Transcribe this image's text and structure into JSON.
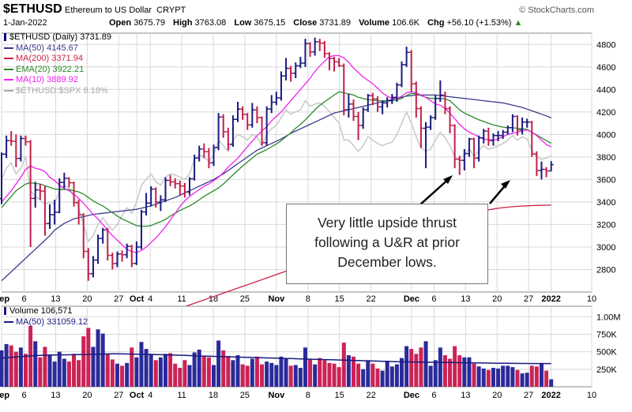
{
  "header": {
    "symbol": "$ETHUSD",
    "name": "Ethereum to US Dollar",
    "exchange": "CRYPT",
    "date": "1-Jan-2022",
    "watermark": "© StockCharts.com",
    "open_label": "Open",
    "open": "3675.79",
    "high_label": "High",
    "high": "3763.08",
    "low_label": "Low",
    "low": "3675.15",
    "close_label": "Close",
    "close": "3731.89",
    "volume_label": "Volume",
    "volume": "106.6K",
    "chg_label": "Chg",
    "chg": "+56.10 (+1.53%)",
    "chg_arrow": "▲"
  },
  "legend": [
    {
      "text": "$ETHUSD (Daily) 3731.89",
      "color": "#000080",
      "marker": "bar"
    },
    {
      "text": "MA(50) 4145.67",
      "color": "#3a3a8c",
      "marker": "line"
    },
    {
      "text": "MA(200) 3371.94",
      "color": "#cc2244",
      "marker": "line"
    },
    {
      "text": "EMA(20) 3922.21",
      "color": "#2a8a2a",
      "marker": "line"
    },
    {
      "text": "MA(10) 3889.92",
      "color": "#ee22ee",
      "marker": "line"
    },
    {
      "text": "$ETHUSD:$SPX 8.18%",
      "color": "#aaaaaa",
      "marker": "line"
    }
  ],
  "volume_legend": [
    {
      "text": "Volume 106,571",
      "color": "#1a1a80",
      "marker": "bar"
    },
    {
      "text": "MA(50) 331059.12",
      "color": "#1a1a80",
      "marker": "line"
    }
  ],
  "annotation": {
    "lines": [
      "Very little upside thrust",
      "following a U&R at prior",
      "December lows."
    ]
  },
  "colors": {
    "up": "#1a1a80",
    "down": "#c0204a",
    "grid": "#d8d8d8",
    "ma50": "#3a3a8c",
    "ma200": "#cc2244",
    "ema20": "#2a8a2a",
    "ma10": "#ee22ee",
    "ratio": "#c8c8c8",
    "vol_up": "#2a2a9a",
    "vol_down": "#cc2255"
  },
  "chart_data": {
    "type": "ohlc",
    "title": "$ETHUSD Ethereum to US Dollar CRYPT",
    "start_date": "2021-09-01",
    "end_date": "2022-01-01",
    "price_ylim": [
      2600,
      4900
    ],
    "price_ticks": [
      2800,
      3000,
      3200,
      3400,
      3600,
      3800,
      4000,
      4200,
      4400,
      4600,
      4800
    ],
    "volume_ylim": [
      0,
      1150000
    ],
    "volume_tick_labels": [
      "250K",
      "500K",
      "750K",
      "1.00M"
    ],
    "volume_ticks": [
      250000,
      500000,
      750000,
      1000000
    ],
    "x_tick_labels": [
      {
        "date": "2021-09-01",
        "label": "Sep",
        "bold": true
      },
      {
        "date": "2021-09-06",
        "label": "6"
      },
      {
        "date": "2021-09-13",
        "label": "13"
      },
      {
        "date": "2021-09-20",
        "label": "20"
      },
      {
        "date": "2021-09-27",
        "label": "27"
      },
      {
        "date": "2021-10-01",
        "label": "Oct",
        "bold": true
      },
      {
        "date": "2021-10-04",
        "label": "4"
      },
      {
        "date": "2021-10-11",
        "label": "11"
      },
      {
        "date": "2021-10-18",
        "label": "18"
      },
      {
        "date": "2021-10-25",
        "label": "25"
      },
      {
        "date": "2021-11-01",
        "label": "Nov",
        "bold": true
      },
      {
        "date": "2021-11-08",
        "label": "8"
      },
      {
        "date": "2021-11-15",
        "label": "15"
      },
      {
        "date": "2021-11-22",
        "label": "22"
      },
      {
        "date": "2021-12-01",
        "label": "Dec",
        "bold": true
      },
      {
        "date": "2021-12-06",
        "label": "6"
      },
      {
        "date": "2021-12-13",
        "label": "13"
      },
      {
        "date": "2021-12-20",
        "label": "20"
      },
      {
        "date": "2021-12-27",
        "label": "27"
      },
      {
        "date": "2022-01-01",
        "label": "2022",
        "bold": true
      },
      {
        "date": "2022-01-10",
        "label": "10"
      }
    ],
    "close": [
      3825,
      3945,
      3940,
      3787,
      3964,
      3935,
      3432,
      3507,
      3497,
      3209,
      3287,
      3309,
      3574,
      3611,
      3571,
      3395,
      3286,
      2961,
      2763,
      2884,
      3076,
      3152,
      2926,
      2853,
      2938,
      2931,
      3006,
      2854,
      3000,
      3312,
      3390,
      3515,
      3399,
      3419,
      3592,
      3579,
      3563,
      3542,
      3489,
      3606,
      3790,
      3870,
      3847,
      3748,
      3884,
      4155,
      4024,
      3913,
      4134,
      4225,
      4178,
      4085,
      4218,
      4150,
      3927,
      4226,
      4286,
      4325,
      4520,
      4587,
      4544,
      4610,
      4634,
      4807,
      4734,
      4823,
      4812,
      4718,
      4675,
      4645,
      4610,
      4220,
      4270,
      4160,
      4080,
      4220,
      4345,
      4315,
      4245,
      4280,
      4300,
      4330,
      4440,
      4620,
      4730,
      4450,
      4230,
      4055,
      4065,
      4150,
      4320,
      4350,
      4230,
      4080,
      3780,
      3770,
      3830,
      3960,
      3790,
      3970,
      4030,
      3945,
      3990,
      3990,
      4020,
      4060,
      4160,
      4040,
      4110,
      4110,
      3826,
      3680,
      3690,
      3675,
      3732
    ],
    "open": [
      3430,
      3825,
      3945,
      3940,
      3787,
      3964,
      3935,
      3432,
      3507,
      3497,
      3209,
      3287,
      3309,
      3574,
      3611,
      3571,
      3395,
      3286,
      2961,
      2763,
      2884,
      3076,
      3152,
      2926,
      2853,
      2938,
      2931,
      3006,
      2854,
      3000,
      3312,
      3390,
      3515,
      3399,
      3419,
      3592,
      3579,
      3563,
      3542,
      3489,
      3606,
      3790,
      3870,
      3847,
      3748,
      3884,
      4155,
      4024,
      3913,
      4134,
      4225,
      4178,
      4085,
      4218,
      4150,
      3927,
      4226,
      4286,
      4325,
      4520,
      4587,
      4544,
      4610,
      4634,
      4807,
      4734,
      4823,
      4812,
      4718,
      4675,
      4645,
      4610,
      4220,
      4270,
      4160,
      4080,
      4220,
      4345,
      4315,
      4245,
      4280,
      4300,
      4330,
      4440,
      4620,
      4730,
      4450,
      4230,
      4055,
      4065,
      4150,
      4320,
      4350,
      4230,
      4080,
      3780,
      3770,
      3830,
      3960,
      3790,
      3970,
      4030,
      3945,
      3990,
      3990,
      4020,
      4060,
      4160,
      4040,
      4110,
      4110,
      3826,
      3680,
      3690,
      3676
    ],
    "high": [
      3840,
      3990,
      4030,
      4000,
      3990,
      3990,
      3950,
      3580,
      3560,
      3540,
      3380,
      3420,
      3610,
      3660,
      3620,
      3580,
      3420,
      3300,
      2990,
      2920,
      3110,
      3170,
      3170,
      2950,
      2960,
      2970,
      3030,
      3020,
      3050,
      3330,
      3480,
      3540,
      3530,
      3460,
      3620,
      3640,
      3610,
      3590,
      3570,
      3620,
      3820,
      3900,
      3920,
      3880,
      3910,
      4190,
      4180,
      4060,
      4170,
      4290,
      4250,
      4190,
      4280,
      4250,
      4160,
      4250,
      4350,
      4380,
      4560,
      4680,
      4610,
      4640,
      4690,
      4850,
      4820,
      4860,
      4850,
      4830,
      4730,
      4690,
      4680,
      4630,
      4360,
      4310,
      4200,
      4240,
      4360,
      4370,
      4340,
      4300,
      4330,
      4360,
      4460,
      4650,
      4780,
      4750,
      4470,
      4250,
      4110,
      4170,
      4350,
      4480,
      4380,
      4250,
      4090,
      3810,
      3870,
      3970,
      3970,
      3990,
      4050,
      4060,
      4010,
      4030,
      4040,
      4080,
      4180,
      4170,
      4150,
      4140,
      4120,
      3850,
      3760,
      3710,
      3763
    ],
    "low": [
      3380,
      3790,
      3900,
      3710,
      3760,
      3900,
      3000,
      3350,
      3420,
      3100,
      3160,
      3200,
      3300,
      3520,
      3530,
      3360,
      3200,
      2900,
      2700,
      2730,
      2850,
      3030,
      2880,
      2800,
      2820,
      2870,
      2900,
      2820,
      2840,
      2980,
      3280,
      3360,
      3350,
      3320,
      3400,
      3540,
      3520,
      3460,
      3440,
      3460,
      3590,
      3760,
      3790,
      3700,
      3720,
      3860,
      3970,
      3860,
      3890,
      4110,
      4130,
      4040,
      4060,
      4100,
      3900,
      3900,
      4190,
      4260,
      4300,
      4480,
      4470,
      4500,
      4590,
      4600,
      4690,
      4700,
      4740,
      4680,
      4570,
      4560,
      4600,
      4170,
      4150,
      4120,
      3950,
      4050,
      4200,
      4260,
      4200,
      4180,
      4240,
      4270,
      4290,
      4420,
      4600,
      4380,
      4150,
      3880,
      3700,
      4040,
      4130,
      4290,
      4180,
      4010,
      3700,
      3640,
      3680,
      3800,
      3700,
      3760,
      3920,
      3900,
      3900,
      3940,
      3960,
      4000,
      4020,
      3990,
      4000,
      4060,
      3800,
      3630,
      3600,
      3620,
      3675
    ],
    "ma50": [
      2700,
      2740,
      2780,
      2820,
      2860,
      2900,
      2940,
      2980,
      3020,
      3060,
      3100,
      3150,
      3180,
      3210,
      3230,
      3250,
      3260,
      3270,
      3280,
      3290,
      3295,
      3300,
      3305,
      3310,
      3315,
      3320,
      3325,
      3330,
      3335,
      3345,
      3355,
      3365,
      3380,
      3395,
      3410,
      3425,
      3440,
      3460,
      3480,
      3500,
      3520,
      3540,
      3560,
      3580,
      3600,
      3625,
      3650,
      3680,
      3710,
      3740,
      3770,
      3800,
      3830,
      3860,
      3880,
      3900,
      3920,
      3940,
      3960,
      3985,
      4010,
      4030,
      4050,
      4070,
      4090,
      4110,
      4130,
      4150,
      4170,
      4190,
      4200,
      4210,
      4220,
      4230,
      4240,
      4250,
      4260,
      4270,
      4280,
      4290,
      4300,
      4310,
      4320,
      4330,
      4340,
      4345,
      4350,
      4350,
      4350,
      4350,
      4350,
      4345,
      4340,
      4335,
      4330,
      4325,
      4320,
      4315,
      4310,
      4305,
      4300,
      4295,
      4290,
      4285,
      4280,
      4270,
      4260,
      4250,
      4240,
      4225,
      4210,
      4195,
      4180,
      4165,
      4146
    ],
    "ma200": [
      1800,
      1820,
      1840,
      1860,
      1880,
      1900,
      1920,
      1940,
      1960,
      1980,
      2000,
      2020,
      2040,
      2060,
      2080,
      2100,
      2120,
      2140,
      2160,
      2180,
      2200,
      2215,
      2230,
      2245,
      2260,
      2275,
      2290,
      2305,
      2320,
      2335,
      2350,
      2365,
      2380,
      2395,
      2410,
      2425,
      2440,
      2455,
      2470,
      2485,
      2500,
      2515,
      2530,
      2545,
      2560,
      2575,
      2590,
      2605,
      2620,
      2635,
      2650,
      2665,
      2680,
      2695,
      2710,
      2725,
      2740,
      2755,
      2770,
      2785,
      2800,
      2815,
      2830,
      2845,
      2860,
      2875,
      2890,
      2905,
      2920,
      2935,
      2950,
      2965,
      2980,
      2995,
      3010,
      3025,
      3040,
      3055,
      3070,
      3085,
      3100,
      3115,
      3130,
      3145,
      3160,
      3172,
      3184,
      3196,
      3208,
      3220,
      3230,
      3240,
      3250,
      3260,
      3270,
      3280,
      3290,
      3298,
      3306,
      3314,
      3322,
      3330,
      3338,
      3344,
      3350,
      3354,
      3358,
      3361,
      3364,
      3366,
      3368,
      3369,
      3370,
      3371,
      3372
    ],
    "ema20": [
      3350,
      3400,
      3450,
      3500,
      3530,
      3560,
      3570,
      3565,
      3560,
      3545,
      3530,
      3515,
      3510,
      3510,
      3510,
      3500,
      3490,
      3470,
      3440,
      3410,
      3385,
      3365,
      3335,
      3305,
      3275,
      3250,
      3230,
      3210,
      3190,
      3185,
      3185,
      3190,
      3210,
      3225,
      3245,
      3275,
      3300,
      3325,
      3345,
      3365,
      3390,
      3420,
      3450,
      3475,
      3500,
      3525,
      3560,
      3600,
      3640,
      3680,
      3720,
      3755,
      3790,
      3825,
      3845,
      3865,
      3890,
      3915,
      3945,
      3980,
      4015,
      4055,
      4090,
      4130,
      4175,
      4220,
      4260,
      4290,
      4320,
      4350,
      4380,
      4370,
      4360,
      4350,
      4330,
      4320,
      4310,
      4305,
      4300,
      4300,
      4300,
      4300,
      4305,
      4320,
      4345,
      4365,
      4360,
      4345,
      4330,
      4320,
      4320,
      4320,
      4315,
      4300,
      4260,
      4220,
      4190,
      4170,
      4150,
      4130,
      4115,
      4100,
      4085,
      4075,
      4065,
      4060,
      4060,
      4055,
      4050,
      4045,
      4020,
      3995,
      3970,
      3945,
      3922
    ],
    "ma10": [
      3400,
      3450,
      3500,
      3560,
      3620,
      3690,
      3720,
      3700,
      3690,
      3670,
      3620,
      3590,
      3550,
      3520,
      3500,
      3470,
      3430,
      3390,
      3340,
      3290,
      3250,
      3200,
      3150,
      3100,
      3060,
      3020,
      2980,
      2960,
      2950,
      2970,
      3000,
      3040,
      3080,
      3130,
      3180,
      3240,
      3300,
      3360,
      3410,
      3450,
      3480,
      3510,
      3540,
      3560,
      3590,
      3620,
      3660,
      3710,
      3750,
      3790,
      3840,
      3890,
      3940,
      3990,
      4030,
      4070,
      4120,
      4160,
      4200,
      4250,
      4300,
      4350,
      4400,
      4450,
      4500,
      4560,
      4610,
      4650,
      4690,
      4700,
      4700,
      4680,
      4640,
      4590,
      4550,
      4510,
      4480,
      4450,
      4410,
      4370,
      4340,
      4320,
      4320,
      4340,
      4370,
      4380,
      4370,
      4350,
      4330,
      4300,
      4270,
      4260,
      4230,
      4190,
      4140,
      4090,
      4050,
      4020,
      4000,
      3980,
      3960,
      3955,
      3950,
      3960,
      3980,
      4000,
      4010,
      4020,
      4030,
      4040,
      4020,
      3990,
      3950,
      3910,
      3890
    ],
    "ratio": [
      3600,
      3700,
      3750,
      3650,
      3700,
      3800,
      3500,
      3450,
      3420,
      3380,
      3400,
      3380,
      3500,
      3550,
      3520,
      3450,
      3350,
      3200,
      3050,
      3100,
      3200,
      3260,
      3200,
      3150,
      3200,
      3280,
      3350,
      3300,
      3400,
      3550,
      3600,
      3650,
      3580,
      3550,
      3620,
      3650,
      3640,
      3620,
      3600,
      3650,
      3780,
      3820,
      3800,
      3760,
      3820,
      3950,
      3900,
      3850,
      3950,
      4000,
      3980,
      3950,
      4000,
      3980,
      3900,
      4000,
      4050,
      4080,
      4150,
      4220,
      4180,
      4200,
      4220,
      4300,
      4250,
      4270,
      4280,
      4250,
      4200,
      4150,
      4100,
      3950,
      3950,
      3900,
      3850,
      3900,
      3980,
      3950,
      3920,
      3900,
      3920,
      3930,
      4000,
      4100,
      4200,
      4100,
      3980,
      3880,
      3850,
      3870,
      3950,
      4020,
      3970,
      3900,
      3800,
      3780,
      3820,
      3880,
      3800,
      3860,
      3900,
      3870,
      3880,
      3900,
      3920,
      3950,
      3990,
      3950,
      3980,
      3960,
      3860,
      3800,
      3780,
      3790,
      3810
    ],
    "volume": [
      520000,
      610000,
      590000,
      500000,
      560000,
      470000,
      870000,
      650000,
      420000,
      570000,
      460000,
      360000,
      500000,
      400000,
      360000,
      470000,
      380000,
      720000,
      840000,
      570000,
      820000,
      760000,
      470000,
      390000,
      330000,
      300000,
      340000,
      560000,
      420000,
      640000,
      540000,
      460000,
      380000,
      420000,
      470000,
      480000,
      330000,
      270000,
      380000,
      310000,
      490000,
      530000,
      430000,
      420000,
      310000,
      660000,
      520000,
      440000,
      380000,
      450000,
      320000,
      300000,
      400000,
      430000,
      320000,
      360000,
      340000,
      310000,
      430000,
      400000,
      300000,
      310000,
      270000,
      560000,
      400000,
      320000,
      410000,
      380000,
      340000,
      330000,
      280000,
      630000,
      450000,
      430000,
      330000,
      250000,
      380000,
      330000,
      260000,
      230000,
      370000,
      290000,
      320000,
      410000,
      580000,
      540000,
      470000,
      560000,
      650000,
      300000,
      380000,
      560000,
      450000,
      400000,
      580000,
      450000,
      420000,
      420000,
      330000,
      290000,
      260000,
      240000,
      270000,
      260000,
      300000,
      300000,
      280000,
      240000,
      190000,
      200000,
      300000,
      290000,
      340000,
      230000,
      106571
    ],
    "volume_ma50": [
      410000,
      415000,
      420000,
      425000,
      430000,
      435000,
      440000,
      445000,
      448000,
      450000,
      452000,
      454000,
      455000,
      456000,
      457000,
      458000,
      459000,
      460000,
      462000,
      464000,
      466000,
      468000,
      469000,
      470000,
      470000,
      469000,
      468000,
      467000,
      466000,
      465000,
      464000,
      462000,
      460000,
      458000,
      456000,
      454000,
      452000,
      450000,
      448000,
      445000,
      442000,
      440000,
      438000,
      436000,
      434000,
      432000,
      430000,
      428000,
      426000,
      424000,
      422000,
      420000,
      418000,
      416000,
      414000,
      412000,
      410000,
      408000,
      406000,
      404000,
      402000,
      400000,
      398000,
      396000,
      394000,
      392000,
      390000,
      388000,
      386000,
      384000,
      382000,
      380000,
      378000,
      376000,
      374000,
      372000,
      370000,
      368000,
      366000,
      364000,
      362000,
      360000,
      358000,
      356000,
      355000,
      354000,
      353000,
      352000,
      351000,
      350000,
      349000,
      348000,
      347000,
      346000,
      345000,
      344000,
      343000,
      342000,
      341000,
      340000,
      339000,
      338000,
      337000,
      336000,
      335000,
      334500,
      334000,
      333500,
      333000,
      332500,
      332000,
      331800,
      331500,
      331300,
      331059
    ]
  }
}
